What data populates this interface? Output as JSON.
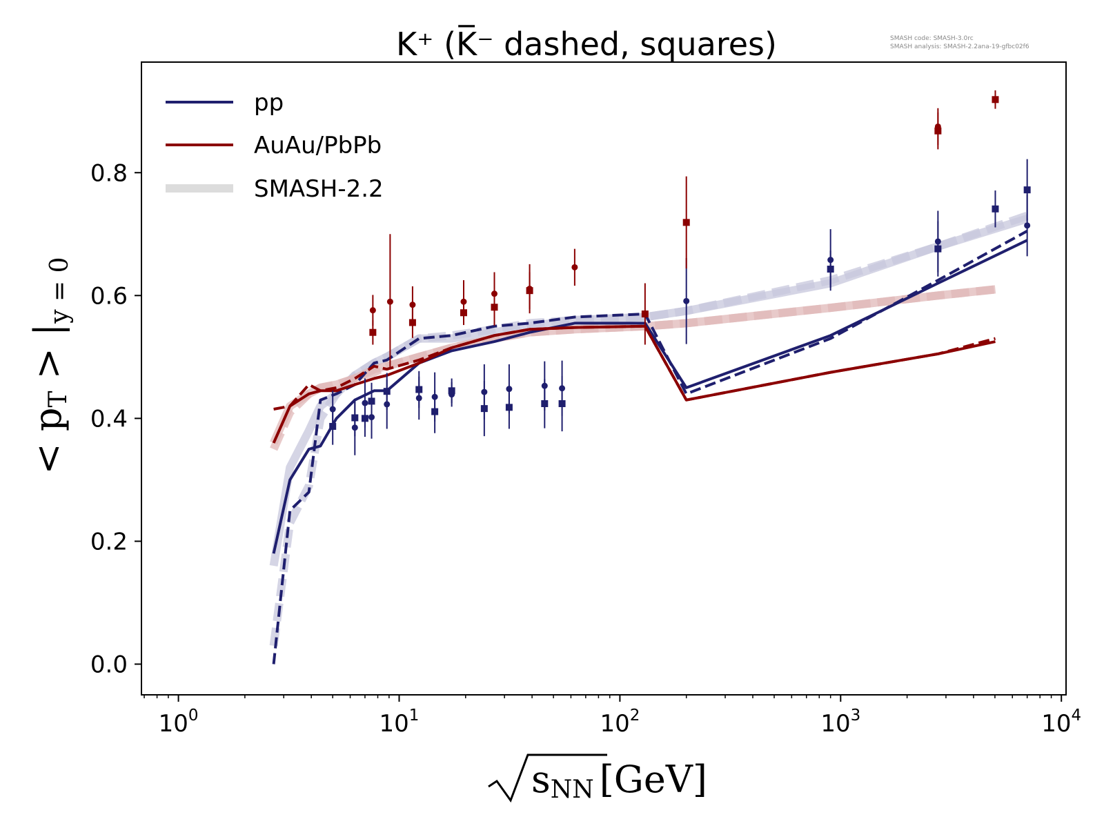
{
  "chart_data": {
    "type": "line",
    "title": "K⁺ (K̅⁻ dashed, squares)",
    "xlabel": {
      "base": "s",
      "sub": "NN",
      "unit": "[GeV]"
    },
    "ylabel": {
      "base": "< p",
      "sub_t": "T",
      "mid": " > |",
      "sub_y": "y = 0"
    },
    "xscale": "log",
    "xlim": [
      0.68,
      10500
    ],
    "ylim": [
      -0.05,
      0.98
    ],
    "xticks": [
      {
        "value": 1,
        "base": "10",
        "exp": "0"
      },
      {
        "value": 10,
        "base": "10",
        "exp": "1"
      },
      {
        "value": 100,
        "base": "10",
        "exp": "2"
      },
      {
        "value": 1000,
        "base": "10",
        "exp": "3"
      },
      {
        "value": 10000,
        "base": "10",
        "exp": "4"
      }
    ],
    "yticks": [
      {
        "value": 0.0,
        "label": "0.0"
      },
      {
        "value": 0.2,
        "label": "0.2"
      },
      {
        "value": 0.4,
        "label": "0.4"
      },
      {
        "value": 0.6,
        "label": "0.6"
      },
      {
        "value": 0.8,
        "label": "0.8"
      }
    ],
    "grid": false,
    "legend_position": "top-left",
    "legend": [
      {
        "label": "pp",
        "color": "#1f1f6e",
        "style": "thin"
      },
      {
        "label": "AuAu/PbPb",
        "color": "#8b0000",
        "style": "thin"
      },
      {
        "label": "SMASH-2.2",
        "color": "#dcdcdc",
        "style": "thick"
      }
    ],
    "watermark": [
      "SMASH code:      SMASH-3.0rc",
      "SMASH analysis: SMASH-2.2ana-19-gfbc02f6"
    ],
    "series": [
      {
        "role": "smash22-pp-solid",
        "color": "#c7c7dc",
        "style": "thick",
        "dash": false,
        "x": [
          2.7,
          3.2,
          3.9,
          4.4,
          5.2,
          6.3,
          7.7,
          8.8,
          12.3,
          17.3,
          27,
          39,
          62.4,
          130,
          200,
          900,
          2760,
          7000
        ],
        "y": [
          0.16,
          0.32,
          0.38,
          0.42,
          0.44,
          0.47,
          0.49,
          0.5,
          0.53,
          0.53,
          0.54,
          0.55,
          0.56,
          0.565,
          0.575,
          0.62,
          0.68,
          0.725
        ]
      },
      {
        "role": "smash22-pp-dashed",
        "color": "#c7c7dc",
        "style": "thick",
        "dash": true,
        "x": [
          2.7,
          3.2,
          3.9,
          4.4,
          5.2,
          6.3,
          7.7,
          8.8,
          12.3,
          17.3,
          27,
          39,
          62.4,
          130,
          200,
          900,
          2760,
          7000
        ],
        "y": [
          0.03,
          0.23,
          0.29,
          0.4,
          0.44,
          0.47,
          0.49,
          0.5,
          0.53,
          0.535,
          0.545,
          0.555,
          0.56,
          0.565,
          0.575,
          0.625,
          0.68,
          0.73
        ]
      },
      {
        "role": "smash22-auau-solid",
        "color": "#e0b8b8",
        "style": "thick",
        "dash": false,
        "x": [
          2.7,
          3.2,
          3.9,
          4.4,
          5.2,
          6.3,
          7.7,
          8.8,
          12.3,
          17.3,
          27,
          39,
          62.4,
          130,
          200,
          900,
          2760,
          5020
        ],
        "y": [
          0.36,
          0.42,
          0.44,
          0.45,
          0.455,
          0.465,
          0.48,
          0.485,
          0.5,
          0.515,
          0.53,
          0.54,
          0.545,
          0.55,
          0.555,
          0.58,
          0.6,
          0.61
        ]
      },
      {
        "role": "smash22-auau-dashed",
        "color": "#e0b8b8",
        "style": "thick",
        "dash": true,
        "x": [
          2.7,
          3.2,
          3.9,
          4.4,
          5.2,
          6.3,
          7.7,
          8.8,
          12.3,
          17.3,
          27,
          39,
          62.4,
          130,
          200,
          900,
          2760,
          5020
        ],
        "y": [
          0.35,
          0.41,
          0.44,
          0.45,
          0.455,
          0.465,
          0.475,
          0.485,
          0.5,
          0.515,
          0.53,
          0.54,
          0.545,
          0.55,
          0.555,
          0.58,
          0.6,
          0.61
        ]
      },
      {
        "role": "pp-solid",
        "color": "#1f1f6e",
        "style": "thin",
        "dash": false,
        "x": [
          2.7,
          3.2,
          3.9,
          4.4,
          5.2,
          6.3,
          7.7,
          8.8,
          12.3,
          17.3,
          27,
          39,
          62.4,
          130,
          200,
          900,
          2760,
          7000
        ],
        "y": [
          0.18,
          0.3,
          0.35,
          0.355,
          0.4,
          0.43,
          0.445,
          0.445,
          0.49,
          0.51,
          0.525,
          0.54,
          0.555,
          0.555,
          0.45,
          0.535,
          0.62,
          0.69
        ]
      },
      {
        "role": "pp-dashed",
        "color": "#1f1f6e",
        "style": "thin",
        "dash": true,
        "x": [
          2.7,
          3.2,
          3.9,
          4.4,
          5.2,
          6.3,
          7.7,
          8.8,
          12.3,
          17.3,
          27,
          39,
          62.4,
          130,
          200,
          900,
          2760,
          7000
        ],
        "y": [
          0.0,
          0.25,
          0.28,
          0.43,
          0.44,
          0.455,
          0.49,
          0.495,
          0.53,
          0.535,
          0.55,
          0.555,
          0.565,
          0.57,
          0.44,
          0.53,
          0.625,
          0.705
        ]
      },
      {
        "role": "auau-solid",
        "color": "#8b0000",
        "style": "thin",
        "dash": false,
        "x": [
          2.7,
          3.2,
          3.9,
          4.4,
          5.2,
          6.3,
          7.7,
          8.8,
          12.3,
          17.3,
          27,
          39,
          62.4,
          130,
          200,
          900,
          2760,
          5020
        ],
        "y": [
          0.36,
          0.42,
          0.44,
          0.445,
          0.445,
          0.455,
          0.465,
          0.47,
          0.49,
          0.515,
          0.535,
          0.545,
          0.548,
          0.55,
          0.43,
          0.475,
          0.505,
          0.525
        ]
      },
      {
        "role": "auau-dashed",
        "color": "#8b0000",
        "style": "thin",
        "dash": true,
        "x": [
          2.7,
          3.2,
          3.9,
          4.4,
          5.2,
          6.3,
          7.7,
          8.8,
          12.3,
          17.3,
          27,
          39,
          62.4,
          130,
          200,
          900,
          2760,
          5020
        ],
        "y": [
          0.415,
          0.42,
          0.455,
          0.445,
          0.45,
          0.465,
          0.485,
          0.48,
          0.495,
          0.515,
          0.535,
          0.545,
          0.548,
          0.55,
          0.43,
          0.475,
          0.505,
          0.53
        ]
      }
    ],
    "points": [
      {
        "x": 5.0,
        "y": 0.415,
        "err": 0.03,
        "marker": "circle",
        "color": "#1f1f6e"
      },
      {
        "x": 5.0,
        "y": 0.387,
        "err": 0.03,
        "marker": "square",
        "color": "#1f1f6e"
      },
      {
        "x": 6.3,
        "y": 0.385,
        "err": 0.045,
        "marker": "circle",
        "color": "#1f1f6e"
      },
      {
        "x": 6.3,
        "y": 0.401,
        "err": 0.03,
        "marker": "square",
        "color": "#1f1f6e"
      },
      {
        "x": 7.0,
        "y": 0.425,
        "err": 0.04,
        "marker": "circle",
        "color": "#1f1f6e"
      },
      {
        "x": 7.0,
        "y": 0.4,
        "err": 0.03,
        "marker": "square",
        "color": "#1f1f6e"
      },
      {
        "x": 7.5,
        "y": 0.402,
        "err": 0.035,
        "marker": "circle",
        "color": "#1f1f6e"
      },
      {
        "x": 7.5,
        "y": 0.428,
        "err": 0.03,
        "marker": "square",
        "color": "#1f1f6e"
      },
      {
        "x": 8.8,
        "y": 0.423,
        "err": 0.04,
        "marker": "circle",
        "color": "#1f1f6e"
      },
      {
        "x": 8.8,
        "y": 0.444,
        "err": 0.03,
        "marker": "square",
        "color": "#1f1f6e"
      },
      {
        "x": 12.3,
        "y": 0.433,
        "err": 0.035,
        "marker": "circle",
        "color": "#1f1f6e"
      },
      {
        "x": 12.3,
        "y": 0.447,
        "err": 0.03,
        "marker": "square",
        "color": "#1f1f6e"
      },
      {
        "x": 14.5,
        "y": 0.435,
        "err": 0.04,
        "marker": "circle",
        "color": "#1f1f6e"
      },
      {
        "x": 14.5,
        "y": 0.411,
        "err": 0.035,
        "marker": "square",
        "color": "#1f1f6e"
      },
      {
        "x": 17.3,
        "y": 0.439,
        "err": 0.02,
        "marker": "circle",
        "color": "#1f1f6e"
      },
      {
        "x": 17.3,
        "y": 0.445,
        "err": 0.02,
        "marker": "square",
        "color": "#1f1f6e"
      },
      {
        "x": 24.3,
        "y": 0.443,
        "err": 0.045,
        "marker": "circle",
        "color": "#1f1f6e"
      },
      {
        "x": 24.3,
        "y": 0.416,
        "err": 0.045,
        "marker": "square",
        "color": "#1f1f6e"
      },
      {
        "x": 31.5,
        "y": 0.448,
        "err": 0.04,
        "marker": "circle",
        "color": "#1f1f6e"
      },
      {
        "x": 31.5,
        "y": 0.418,
        "err": 0.035,
        "marker": "square",
        "color": "#1f1f6e"
      },
      {
        "x": 45.6,
        "y": 0.453,
        "err": 0.04,
        "marker": "circle",
        "color": "#1f1f6e"
      },
      {
        "x": 45.6,
        "y": 0.424,
        "err": 0.04,
        "marker": "square",
        "color": "#1f1f6e"
      },
      {
        "x": 54.7,
        "y": 0.449,
        "err": 0.045,
        "marker": "circle",
        "color": "#1f1f6e"
      },
      {
        "x": 54.7,
        "y": 0.424,
        "err": 0.045,
        "marker": "square",
        "color": "#1f1f6e"
      },
      {
        "x": 200,
        "y": 0.591,
        "err": 0.07,
        "marker": "circle",
        "color": "#1f1f6e"
      },
      {
        "x": 900,
        "y": 0.658,
        "err": 0.05,
        "marker": "circle",
        "color": "#1f1f6e"
      },
      {
        "x": 900,
        "y": 0.643,
        "err": 0.03,
        "marker": "square",
        "color": "#1f1f6e"
      },
      {
        "x": 2760,
        "y": 0.688,
        "err": 0.05,
        "marker": "circle",
        "color": "#1f1f6e"
      },
      {
        "x": 2760,
        "y": 0.676,
        "err": 0.045,
        "marker": "square",
        "color": "#1f1f6e"
      },
      {
        "x": 5020,
        "y": 0.741,
        "err": 0.03,
        "marker": "square",
        "color": "#1f1f6e"
      },
      {
        "x": 7000,
        "y": 0.714,
        "err": 0.05,
        "marker": "circle",
        "color": "#1f1f6e"
      },
      {
        "x": 7000,
        "y": 0.772,
        "err": 0.05,
        "marker": "square",
        "color": "#1f1f6e"
      },
      {
        "x": 7.6,
        "y": 0.576,
        "err": 0.025,
        "marker": "circle",
        "color": "#8b0000"
      },
      {
        "x": 7.6,
        "y": 0.54,
        "err": 0.02,
        "marker": "square",
        "color": "#8b0000"
      },
      {
        "x": 9.1,
        "y": 0.59,
        "err": 0.11,
        "marker": "circle",
        "color": "#8b0000"
      },
      {
        "x": 11.5,
        "y": 0.585,
        "err": 0.03,
        "marker": "circle",
        "color": "#8b0000"
      },
      {
        "x": 11.5,
        "y": 0.556,
        "err": 0.025,
        "marker": "square",
        "color": "#8b0000"
      },
      {
        "x": 19.6,
        "y": 0.59,
        "err": 0.035,
        "marker": "circle",
        "color": "#8b0000"
      },
      {
        "x": 19.6,
        "y": 0.572,
        "err": 0.02,
        "marker": "square",
        "color": "#8b0000"
      },
      {
        "x": 27,
        "y": 0.603,
        "err": 0.035,
        "marker": "circle",
        "color": "#8b0000"
      },
      {
        "x": 27,
        "y": 0.581,
        "err": 0.03,
        "marker": "square",
        "color": "#8b0000"
      },
      {
        "x": 39,
        "y": 0.611,
        "err": 0.04,
        "marker": "circle",
        "color": "#8b0000"
      },
      {
        "x": 39,
        "y": 0.608,
        "err": 0.03,
        "marker": "square",
        "color": "#8b0000"
      },
      {
        "x": 62.4,
        "y": 0.646,
        "err": 0.03,
        "marker": "circle",
        "color": "#8b0000"
      },
      {
        "x": 130,
        "y": 0.57,
        "err": 0.05,
        "marker": "square",
        "color": "#8b0000"
      },
      {
        "x": 200,
        "y": 0.719,
        "err": 0.075,
        "marker": "square",
        "color": "#8b0000"
      },
      {
        "x": 2760,
        "y": 0.875,
        "err": 0.03,
        "marker": "circle",
        "color": "#8b0000"
      },
      {
        "x": 2760,
        "y": 0.868,
        "err": 0.03,
        "marker": "square",
        "color": "#8b0000"
      },
      {
        "x": 5020,
        "y": 0.919,
        "err": 0.015,
        "marker": "square",
        "color": "#8b0000"
      }
    ]
  }
}
